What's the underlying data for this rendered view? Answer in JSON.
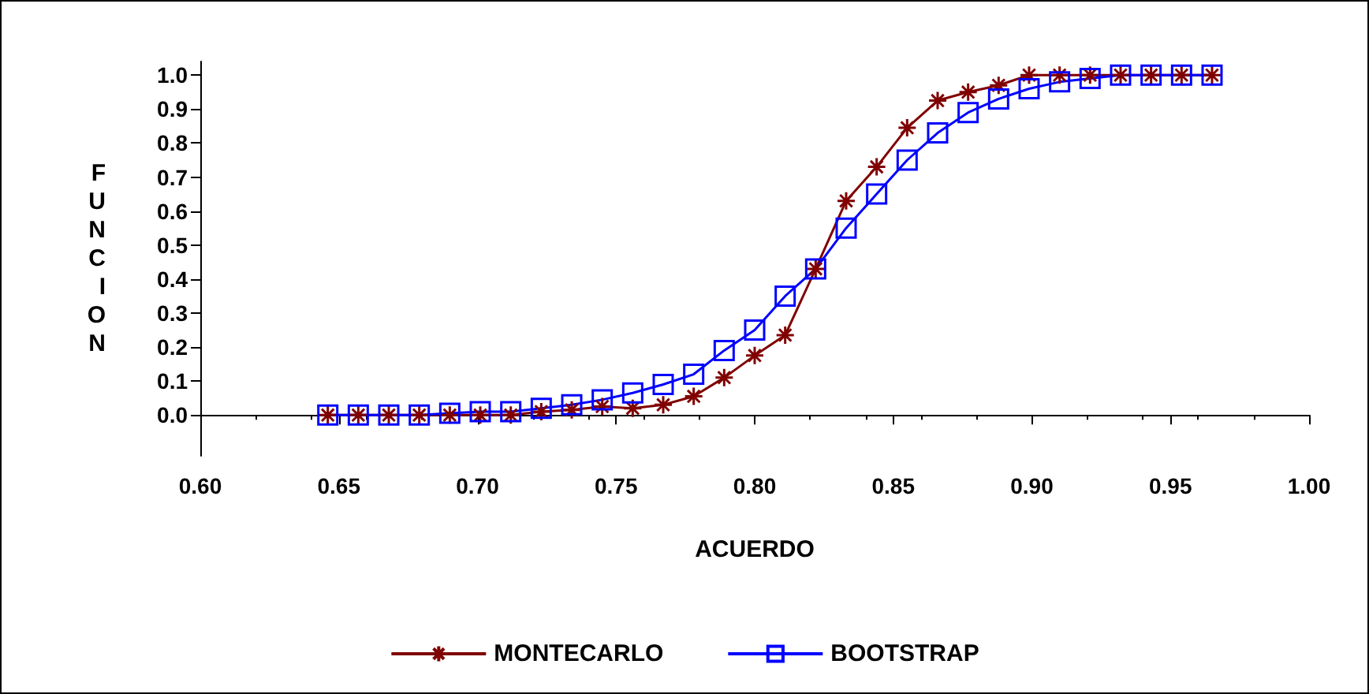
{
  "chart_data": {
    "type": "line",
    "xlabel": "ACUERDO",
    "ylabel": "FUNCION",
    "x": [
      0.646,
      0.657,
      0.668,
      0.679,
      0.69,
      0.701,
      0.712,
      0.723,
      0.734,
      0.745,
      0.756,
      0.767,
      0.778,
      0.789,
      0.8,
      0.811,
      0.822,
      0.833,
      0.844,
      0.855,
      0.866,
      0.877,
      0.888,
      0.899,
      0.91,
      0.921,
      0.932,
      0.943,
      0.954,
      0.965
    ],
    "series": [
      {
        "name": "MONTECARLO",
        "color": "#800000",
        "marker": "cross",
        "values": [
          0,
          0,
          0,
          0,
          0,
          0,
          0,
          0.01,
          0.015,
          0.025,
          0.02,
          0.03,
          0.055,
          0.11,
          0.175,
          0.235,
          0.43,
          0.63,
          0.73,
          0.845,
          0.925,
          0.95,
          0.97,
          1,
          1,
          1,
          1,
          1,
          1,
          1
        ]
      },
      {
        "name": "BOOTSTRAP",
        "color": "#0000ff",
        "marker": "square",
        "values": [
          0,
          0,
          0,
          0,
          0.005,
          0.01,
          0.01,
          0.02,
          0.03,
          0.045,
          0.065,
          0.09,
          0.12,
          0.19,
          0.25,
          0.35,
          0.43,
          0.55,
          0.65,
          0.75,
          0.83,
          0.89,
          0.93,
          0.96,
          0.98,
          0.99,
          1,
          1,
          1,
          1
        ]
      }
    ],
    "xlim": [
      0.6,
      1.0
    ],
    "xticks": [
      {
        "value": 0.6,
        "label": "0.60"
      },
      {
        "value": 0.65,
        "label": "0.65"
      },
      {
        "value": 0.7,
        "label": "0.70"
      },
      {
        "value": 0.75,
        "label": "0.75"
      },
      {
        "value": 0.8,
        "label": "0.80"
      },
      {
        "value": 0.85,
        "label": "0.85"
      },
      {
        "value": 0.9,
        "label": "0.90"
      },
      {
        "value": 0.95,
        "label": "0.95"
      },
      {
        "value": 1.0,
        "label": "1.00"
      }
    ],
    "ylim": [
      -0.12,
      1.04
    ],
    "yticks": [
      {
        "value": 0,
        "label": "0.0"
      },
      {
        "value": 0.1,
        "label": "0.1"
      },
      {
        "value": 0.2,
        "label": "0.2"
      },
      {
        "value": 0.3,
        "label": "0.3"
      },
      {
        "value": 0.4,
        "label": "0.4"
      },
      {
        "value": 0.5,
        "label": "0.5"
      },
      {
        "value": 0.6,
        "label": "0.6"
      },
      {
        "value": 0.7,
        "label": "0.7"
      },
      {
        "value": 0.8,
        "label": "0.8"
      },
      {
        "value": 0.9,
        "label": "0.9"
      },
      {
        "value": 1.0,
        "label": "1.0"
      }
    ],
    "legend": "bottom",
    "line_style": "solid"
  }
}
